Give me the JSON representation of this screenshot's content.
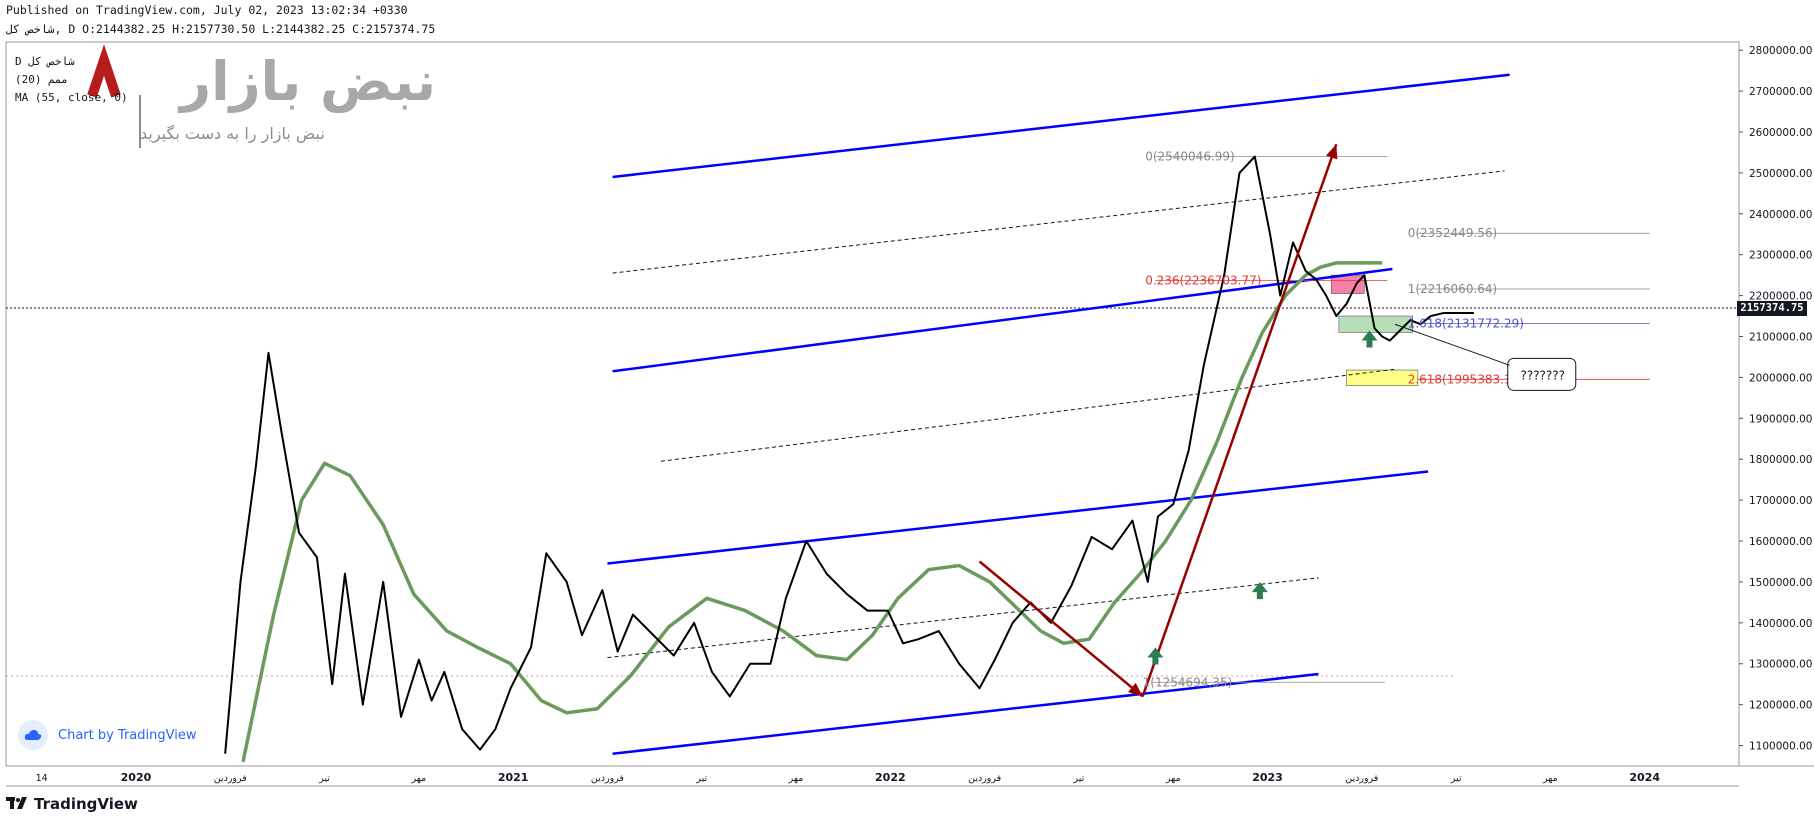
{
  "header": {
    "published": "Published on TradingView.com, July 02, 2023 13:02:34 +0330",
    "ohlc": "شاخص کل, D O:2144382.25 H:2157730.50 L:2144382.25 C:2157374.75"
  },
  "legend": {
    "line1": "D شاخص کل",
    "line2": "(20) ممم",
    "line3": "MA (55, close, 0)"
  },
  "watermark": {
    "title": "نبض بازار",
    "subtitle": "نبض بازار را به دست بگیرید"
  },
  "badge": {
    "label": "Chart by TradingView"
  },
  "footer": {
    "brand": "TradingView"
  },
  "last_price": "2157374.75",
  "colors": {
    "price_line": "#000000",
    "ma_line": "#6b9a5b",
    "channel": "#0000ff",
    "arrow": "#990000",
    "fib_red": "#e53935",
    "fib_blue": "#5050d0",
    "fib_gray": "#888888"
  },
  "chart_data": {
    "type": "line",
    "x_ticks": [
      "14",
      "2020",
      "فروردین",
      "تیر",
      "مهر",
      "2021",
      "فروردین",
      "تیر",
      "مهر",
      "2022",
      "فروردین",
      "تیر",
      "مهر",
      "2023",
      "فروردین",
      "تیر",
      "مهر",
      "2024"
    ],
    "y_ticks": [
      "2800000.00",
      "2700000.00",
      "2600000.00",
      "2500000.00",
      "2400000.00",
      "2300000.00",
      "2200000.00",
      "2100000.00",
      "2000000.00",
      "1900000.00",
      "1800000.00",
      "1700000.00",
      "1600000.00",
      "1500000.00",
      "1400000.00",
      "1300000.00",
      "1200000.00",
      "1100000.00"
    ],
    "ylim": [
      1050000,
      2820000
    ],
    "xlim": [
      0,
      68
    ],
    "series": [
      {
        "name": "شاخص کل",
        "x": [
          8.6,
          9.2,
          9.8,
          10.3,
          10.8,
          11.5,
          12.2,
          12.8,
          13.3,
          14.0,
          14.8,
          15.5,
          16.2,
          16.7,
          17.2,
          17.9,
          18.6,
          19.2,
          19.8,
          20.6,
          21.2,
          22.0,
          22.6,
          23.4,
          24.0,
          24.6,
          25.4,
          26.2,
          27.0,
          27.7,
          28.4,
          29.2,
          30.0,
          30.6,
          31.4,
          32.2,
          33.0,
          33.8,
          34.6,
          35.2,
          35.8,
          36.6,
          37.4,
          38.2,
          38.8,
          39.5,
          40.2,
          41.0,
          41.8,
          42.6,
          43.4,
          44.2,
          44.8,
          45.2,
          45.8,
          46.4,
          47.0,
          47.8,
          48.4,
          49.0,
          49.6,
          50.0,
          50.5,
          51.0,
          51.4,
          51.8,
          52.2,
          52.6,
          53.0,
          53.3,
          53.7,
          54.0,
          54.3,
          54.7,
          55.1,
          55.5,
          55.9,
          56.4,
          56.8,
          57.2,
          57.6
        ],
        "y": [
          1080000,
          1500000,
          1780000,
          2060000,
          1870000,
          1620000,
          1560000,
          1250000,
          1520000,
          1200000,
          1500000,
          1170000,
          1310000,
          1210000,
          1280000,
          1140000,
          1090000,
          1140000,
          1240000,
          1340000,
          1570000,
          1500000,
          1370000,
          1480000,
          1330000,
          1420000,
          1370000,
          1320000,
          1400000,
          1280000,
          1220000,
          1300000,
          1300000,
          1460000,
          1600000,
          1520000,
          1470000,
          1430000,
          1430000,
          1350000,
          1360000,
          1380000,
          1300000,
          1240000,
          1310000,
          1400000,
          1450000,
          1400000,
          1490000,
          1610000,
          1580000,
          1650000,
          1500000,
          1660000,
          1690000,
          1820000,
          2030000,
          2250000,
          2500000,
          2540000,
          2350000,
          2200000,
          2330000,
          2260000,
          2240000,
          2200000,
          2150000,
          2180000,
          2230000,
          2250000,
          2120000,
          2100000,
          2090000,
          2115000,
          2140000,
          2130000,
          2150000,
          2157374.75,
          2157374.75,
          2157374.75,
          2157374.75
        ]
      },
      {
        "name": "MA (55, close, 0)",
        "x": [
          9.3,
          10.5,
          11.6,
          12.5,
          13.5,
          14.8,
          16.0,
          17.3,
          18.5,
          19.8,
          21.0,
          22.0,
          23.2,
          24.5,
          26.0,
          27.5,
          29.0,
          30.5,
          31.8,
          33.0,
          34.0,
          35.0,
          36.2,
          37.4,
          38.6,
          39.6,
          40.6,
          41.5,
          42.5,
          43.5,
          44.5,
          45.5,
          46.5,
          47.5,
          48.5,
          49.3,
          50.2,
          51.0,
          51.6,
          52.2,
          53.0,
          54.0
        ],
        "y": [
          1060000,
          1420000,
          1700000,
          1790000,
          1760000,
          1640000,
          1470000,
          1380000,
          1340000,
          1300000,
          1210000,
          1180000,
          1190000,
          1270000,
          1390000,
          1460000,
          1430000,
          1380000,
          1320000,
          1310000,
          1370000,
          1460000,
          1530000,
          1540000,
          1500000,
          1440000,
          1380000,
          1350000,
          1360000,
          1450000,
          1520000,
          1600000,
          1700000,
          1840000,
          2000000,
          2110000,
          2200000,
          2250000,
          2270000,
          2280000,
          2280000,
          2280000
        ]
      }
    ],
    "channels": [
      {
        "x0": 23.8,
        "y0": 2490000,
        "x1": 59.0,
        "y1": 2740000
      },
      {
        "x0": 23.8,
        "y0": 2015000,
        "x1": 54.4,
        "y1": 2265000
      },
      {
        "x0": 23.6,
        "y0": 1545000,
        "x1": 55.8,
        "y1": 1770000
      },
      {
        "x0": 23.8,
        "y0": 1080000,
        "x1": 51.5,
        "y1": 1275000
      }
    ],
    "dashed_lines": [
      {
        "x0": 23.8,
        "y0": 2255000,
        "x1": 58.8,
        "y1": 2505000
      },
      {
        "x0": 25.7,
        "y0": 1795000,
        "x1": 54.5,
        "y1": 2020000
      },
      {
        "x0": 23.6,
        "y0": 1315000,
        "x1": 51.5,
        "y1": 1510000
      }
    ],
    "arrows": [
      {
        "x0": 38.2,
        "y0": 1550000,
        "x1": 44.6,
        "y1": 1220000
      },
      {
        "x0": 44.6,
        "y0": 1220000,
        "x1": 52.2,
        "y1": 2570000
      }
    ],
    "fib_labels": [
      {
        "text": "0(2540046.99)",
        "x": 44.7,
        "y": 2540046.99,
        "color": "#888888"
      },
      {
        "text": "0(2352449.56)",
        "x": 55.0,
        "y": 2352449.56,
        "color": "#888888"
      },
      {
        "text": "0.236(2236703.77)",
        "x": 44.7,
        "y": 2236703.77,
        "color": "#e53935"
      },
      {
        "text": "1(2216060.64)",
        "x": 55.0,
        "y": 2216060.64,
        "color": "#888888"
      },
      {
        "text": "1.618(2131772.29)",
        "x": 55.0,
        "y": 2131772.29,
        "color": "#5050d0"
      },
      {
        "text": "2.618(1995383.38)",
        "x": 55.0,
        "y": 1995383.38,
        "color": "#e53935"
      },
      {
        "text": "1(1254694.35)",
        "x": 44.6,
        "y": 1254694.35,
        "color": "#888888"
      }
    ],
    "callout": {
      "text": "???????",
      "x": 60.3,
      "y": 2010000
    },
    "zones": [
      {
        "x0": 52.0,
        "x1": 53.3,
        "y0": 2205000,
        "y1": 2250000,
        "color": "#f06292"
      },
      {
        "x0": 52.3,
        "x1": 55.2,
        "y0": 2110000,
        "y1": 2150000,
        "color": "#a5d6a7"
      },
      {
        "x0": 52.6,
        "x1": 55.4,
        "y0": 1980000,
        "y1": 2018000,
        "color": "#ffff66"
      }
    ],
    "markers": [
      {
        "x": 45.1,
        "y": 1320000
      },
      {
        "x": 49.2,
        "y": 1480000
      },
      {
        "x": 53.5,
        "y": 2095000
      }
    ],
    "grid": false
  }
}
